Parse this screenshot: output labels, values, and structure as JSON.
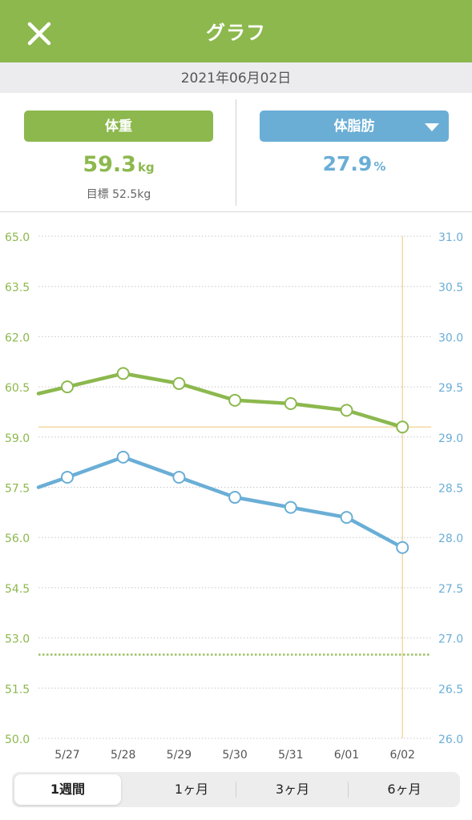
{
  "header": {
    "title": "グラフ",
    "close_icon": "close-icon"
  },
  "date": "2021年06月02日",
  "summary": {
    "weight": {
      "label": "体重",
      "value": "59.3",
      "unit": "kg",
      "goal": "目標 52.5kg",
      "color": "#8cb84e"
    },
    "fat": {
      "label": "体脂肪",
      "value": "27.9",
      "unit": "%",
      "dropdown_icon": "triangle-down-icon",
      "color": "#6aaed6"
    }
  },
  "periods": [
    "1週間",
    "1ヶ月",
    "3ヶ月",
    "6ヶ月"
  ],
  "selected_period": "1週間",
  "chart_data": {
    "type": "line",
    "categories": [
      "5/27",
      "5/28",
      "5/29",
      "5/30",
      "5/31",
      "6/01",
      "6/02"
    ],
    "left_axis": {
      "ticks": [
        "65.0",
        "63.5",
        "62.0",
        "60.5",
        "59.0",
        "57.5",
        "56.0",
        "54.5",
        "53.0",
        "51.5",
        "50.0"
      ],
      "range": [
        50.0,
        65.0
      ],
      "color": "#8cb84e"
    },
    "right_axis": {
      "ticks": [
        "31.0",
        "30.5",
        "30.0",
        "29.5",
        "29.0",
        "28.5",
        "28.0",
        "27.5",
        "27.0",
        "26.5",
        "26.0"
      ],
      "range": [
        26.0,
        31.0
      ],
      "color": "#6aaed6"
    },
    "series": [
      {
        "axis": "left",
        "color": "#8cb84e",
        "values": [
          60.5,
          60.9,
          60.6,
          60.1,
          60.0,
          59.8,
          59.3
        ],
        "edge_start": 60.3
      },
      {
        "axis": "right",
        "color": "#6aaed6",
        "values": [
          28.6,
          28.8,
          28.6,
          28.4,
          28.3,
          28.2,
          27.9
        ],
        "edge_start": 28.5
      }
    ],
    "goal_line": 52.5,
    "crosshair": {
      "category": "6/02",
      "value": 59.3
    },
    "grid": true
  }
}
